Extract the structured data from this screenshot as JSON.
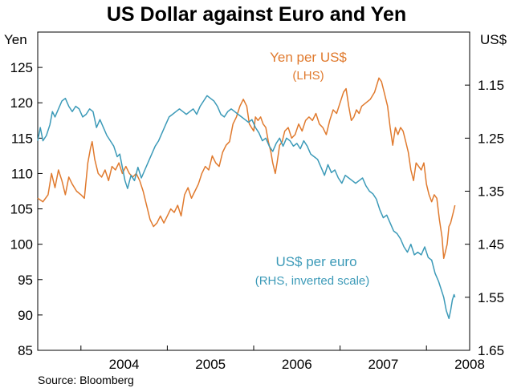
{
  "chart_data": {
    "type": "line",
    "title": "US Dollar against Euro and Yen",
    "source": "Source: Bloomberg",
    "x_ticks": [
      "2004",
      "2005",
      "2006",
      "2007",
      "2008"
    ],
    "y_left": {
      "unit": "Yen",
      "range": [
        85,
        130
      ],
      "ticks": [
        "85",
        "90",
        "95",
        "100",
        "105",
        "110",
        "115",
        "120",
        "125"
      ]
    },
    "y_right": {
      "unit": "US$",
      "range": [
        1.65,
        1.05
      ],
      "inverted": true,
      "ticks": [
        "1.15",
        "1.25",
        "1.35",
        "1.45",
        "1.55",
        "1.65"
      ]
    },
    "grid": false,
    "series": [
      {
        "name": "Yen per US$",
        "note": "(LHS)",
        "axis": "left",
        "color": "#E07A2E",
        "points": [
          [
            2003.5,
            106.5
          ],
          [
            2003.56,
            106.0
          ],
          [
            2003.62,
            107.0
          ],
          [
            2003.66,
            110.0
          ],
          [
            2003.7,
            108.0
          ],
          [
            2003.74,
            110.5
          ],
          [
            2003.78,
            109.0
          ],
          [
            2003.82,
            107.0
          ],
          [
            2003.86,
            109.5
          ],
          [
            2003.9,
            108.5
          ],
          [
            2003.95,
            107.5
          ],
          [
            2004.0,
            107.0
          ],
          [
            2004.04,
            106.5
          ],
          [
            2004.08,
            111.5
          ],
          [
            2004.11,
            113.5
          ],
          [
            2004.13,
            114.5
          ],
          [
            2004.16,
            112.0
          ],
          [
            2004.2,
            110.0
          ],
          [
            2004.24,
            109.5
          ],
          [
            2004.28,
            110.5
          ],
          [
            2004.32,
            109.0
          ],
          [
            2004.36,
            111.0
          ],
          [
            2004.4,
            110.5
          ],
          [
            2004.44,
            111.5
          ],
          [
            2004.48,
            110.0
          ],
          [
            2004.52,
            111.0
          ],
          [
            2004.56,
            110.0
          ],
          [
            2004.6,
            109.5
          ],
          [
            2004.64,
            110.0
          ],
          [
            2004.68,
            109.0
          ],
          [
            2004.72,
            107.5
          ],
          [
            2004.76,
            105.5
          ],
          [
            2004.8,
            103.5
          ],
          [
            2004.84,
            102.5
          ],
          [
            2004.88,
            103.0
          ],
          [
            2004.92,
            104.0
          ],
          [
            2004.96,
            103.0
          ],
          [
            2005.0,
            104.0
          ],
          [
            2005.04,
            105.0
          ],
          [
            2005.08,
            104.5
          ],
          [
            2005.12,
            105.5
          ],
          [
            2005.16,
            104.0
          ],
          [
            2005.2,
            107.0
          ],
          [
            2005.24,
            108.0
          ],
          [
            2005.28,
            106.5
          ],
          [
            2005.32,
            107.5
          ],
          [
            2005.36,
            108.5
          ],
          [
            2005.4,
            110.0
          ],
          [
            2005.44,
            111.0
          ],
          [
            2005.48,
            110.5
          ],
          [
            2005.52,
            112.5
          ],
          [
            2005.56,
            111.5
          ],
          [
            2005.6,
            111.0
          ],
          [
            2005.64,
            113.0
          ],
          [
            2005.68,
            114.0
          ],
          [
            2005.72,
            114.5
          ],
          [
            2005.76,
            117.0
          ],
          [
            2005.8,
            118.0
          ],
          [
            2005.84,
            119.5
          ],
          [
            2005.88,
            120.5
          ],
          [
            2005.92,
            119.5
          ],
          [
            2005.95,
            117.0
          ],
          [
            2006.0,
            116.0
          ],
          [
            2006.02,
            118.0
          ],
          [
            2006.05,
            117.5
          ],
          [
            2006.08,
            118.0
          ],
          [
            2006.11,
            117.0
          ],
          [
            2006.14,
            116.5
          ],
          [
            2006.17,
            114.5
          ],
          [
            2006.2,
            113.0
          ],
          [
            2006.22,
            111.5
          ],
          [
            2006.25,
            110.0
          ],
          [
            2006.27,
            111.5
          ],
          [
            2006.3,
            114.0
          ],
          [
            2006.33,
            114.5
          ],
          [
            2006.36,
            116.0
          ],
          [
            2006.4,
            116.5
          ],
          [
            2006.44,
            115.0
          ],
          [
            2006.48,
            115.5
          ],
          [
            2006.52,
            117.0
          ],
          [
            2006.56,
            116.0
          ],
          [
            2006.6,
            117.5
          ],
          [
            2006.64,
            118.0
          ],
          [
            2006.68,
            117.5
          ],
          [
            2006.72,
            118.5
          ],
          [
            2006.76,
            117.0
          ],
          [
            2006.8,
            116.5
          ],
          [
            2006.84,
            115.5
          ],
          [
            2006.88,
            117.5
          ],
          [
            2006.92,
            119.0
          ],
          [
            2006.96,
            118.5
          ],
          [
            2007.0,
            120.0
          ],
          [
            2007.04,
            121.5
          ],
          [
            2007.07,
            122.0
          ],
          [
            2007.1,
            119.5
          ],
          [
            2007.13,
            117.5
          ],
          [
            2007.16,
            118.0
          ],
          [
            2007.19,
            119.0
          ],
          [
            2007.22,
            118.5
          ],
          [
            2007.25,
            119.5
          ],
          [
            2007.3,
            120.0
          ],
          [
            2007.35,
            120.5
          ],
          [
            2007.4,
            121.5
          ],
          [
            2007.45,
            123.5
          ],
          [
            2007.48,
            123.0
          ],
          [
            2007.51,
            121.5
          ],
          [
            2007.55,
            119.5
          ],
          [
            2007.58,
            116.5
          ],
          [
            2007.61,
            114.0
          ],
          [
            2007.64,
            116.5
          ],
          [
            2007.67,
            115.5
          ],
          [
            2007.7,
            116.5
          ],
          [
            2007.73,
            116.0
          ],
          [
            2007.76,
            114.5
          ],
          [
            2007.79,
            113.0
          ],
          [
            2007.82,
            110.5
          ],
          [
            2007.85,
            109.0
          ],
          [
            2007.88,
            111.5
          ],
          [
            2007.91,
            111.0
          ],
          [
            2007.94,
            110.5
          ],
          [
            2007.97,
            111.5
          ],
          [
            2008.0,
            108.5
          ],
          [
            2008.03,
            107.0
          ],
          [
            2008.06,
            106.0
          ],
          [
            2008.09,
            107.0
          ],
          [
            2008.12,
            106.5
          ],
          [
            2008.15,
            103.5
          ],
          [
            2008.18,
            101.0
          ],
          [
            2008.2,
            98.0
          ],
          [
            2008.22,
            99.0
          ],
          [
            2008.24,
            100.0
          ],
          [
            2008.26,
            102.5
          ],
          [
            2008.28,
            103.0
          ],
          [
            2008.31,
            104.5
          ],
          [
            2008.33,
            105.5
          ]
        ]
      },
      {
        "name": "US$ per euro",
        "note": "(RHS, inverted scale)",
        "axis": "right",
        "color": "#3C9AB8",
        "points": [
          [
            2003.5,
            1.255
          ],
          [
            2003.53,
            1.23
          ],
          [
            2003.56,
            1.255
          ],
          [
            2003.6,
            1.245
          ],
          [
            2003.64,
            1.225
          ],
          [
            2003.67,
            1.2
          ],
          [
            2003.7,
            1.21
          ],
          [
            2003.74,
            1.195
          ],
          [
            2003.78,
            1.18
          ],
          [
            2003.82,
            1.175
          ],
          [
            2003.86,
            1.19
          ],
          [
            2003.9,
            1.2
          ],
          [
            2003.94,
            1.19
          ],
          [
            2003.98,
            1.195
          ],
          [
            2004.02,
            1.21
          ],
          [
            2004.06,
            1.205
          ],
          [
            2004.1,
            1.195
          ],
          [
            2004.14,
            1.2
          ],
          [
            2004.18,
            1.23
          ],
          [
            2004.22,
            1.215
          ],
          [
            2004.26,
            1.23
          ],
          [
            2004.3,
            1.245
          ],
          [
            2004.34,
            1.255
          ],
          [
            2004.38,
            1.265
          ],
          [
            2004.42,
            1.285
          ],
          [
            2004.45,
            1.28
          ],
          [
            2004.48,
            1.305
          ],
          [
            2004.51,
            1.33
          ],
          [
            2004.54,
            1.345
          ],
          [
            2004.58,
            1.32
          ],
          [
            2004.62,
            1.33
          ],
          [
            2004.66,
            1.305
          ],
          [
            2004.7,
            1.325
          ],
          [
            2004.74,
            1.31
          ],
          [
            2004.78,
            1.295
          ],
          [
            2004.82,
            1.28
          ],
          [
            2004.86,
            1.265
          ],
          [
            2004.9,
            1.255
          ],
          [
            2004.94,
            1.24
          ],
          [
            2004.98,
            1.225
          ],
          [
            2005.02,
            1.21
          ],
          [
            2005.06,
            1.205
          ],
          [
            2005.1,
            1.2
          ],
          [
            2005.14,
            1.195
          ],
          [
            2005.18,
            1.2
          ],
          [
            2005.22,
            1.205
          ],
          [
            2005.26,
            1.2
          ],
          [
            2005.3,
            1.195
          ],
          [
            2005.34,
            1.205
          ],
          [
            2005.38,
            1.19
          ],
          [
            2005.42,
            1.18
          ],
          [
            2005.46,
            1.17
          ],
          [
            2005.5,
            1.175
          ],
          [
            2005.54,
            1.18
          ],
          [
            2005.58,
            1.19
          ],
          [
            2005.62,
            1.205
          ],
          [
            2005.66,
            1.21
          ],
          [
            2005.7,
            1.2
          ],
          [
            2005.74,
            1.195
          ],
          [
            2005.78,
            1.2
          ],
          [
            2005.82,
            1.205
          ],
          [
            2005.86,
            1.21
          ],
          [
            2005.9,
            1.215
          ],
          [
            2005.94,
            1.22
          ],
          [
            2005.98,
            1.215
          ],
          [
            2006.02,
            1.23
          ],
          [
            2006.06,
            1.24
          ],
          [
            2006.1,
            1.255
          ],
          [
            2006.14,
            1.25
          ],
          [
            2006.18,
            1.265
          ],
          [
            2006.22,
            1.275
          ],
          [
            2006.26,
            1.26
          ],
          [
            2006.3,
            1.25
          ],
          [
            2006.34,
            1.265
          ],
          [
            2006.38,
            1.25
          ],
          [
            2006.42,
            1.255
          ],
          [
            2006.46,
            1.265
          ],
          [
            2006.5,
            1.26
          ],
          [
            2006.54,
            1.27
          ],
          [
            2006.58,
            1.255
          ],
          [
            2006.62,
            1.265
          ],
          [
            2006.66,
            1.28
          ],
          [
            2006.7,
            1.285
          ],
          [
            2006.74,
            1.29
          ],
          [
            2006.78,
            1.305
          ],
          [
            2006.82,
            1.32
          ],
          [
            2006.86,
            1.3
          ],
          [
            2006.9,
            1.315
          ],
          [
            2006.94,
            1.31
          ],
          [
            2006.98,
            1.325
          ],
          [
            2007.02,
            1.335
          ],
          [
            2007.06,
            1.32
          ],
          [
            2007.1,
            1.325
          ],
          [
            2007.14,
            1.33
          ],
          [
            2007.18,
            1.335
          ],
          [
            2007.22,
            1.33
          ],
          [
            2007.26,
            1.325
          ],
          [
            2007.3,
            1.34
          ],
          [
            2007.34,
            1.35
          ],
          [
            2007.38,
            1.355
          ],
          [
            2007.42,
            1.365
          ],
          [
            2007.46,
            1.385
          ],
          [
            2007.5,
            1.4
          ],
          [
            2007.54,
            1.395
          ],
          [
            2007.58,
            1.41
          ],
          [
            2007.62,
            1.425
          ],
          [
            2007.66,
            1.43
          ],
          [
            2007.7,
            1.44
          ],
          [
            2007.74,
            1.455
          ],
          [
            2007.78,
            1.465
          ],
          [
            2007.82,
            1.45
          ],
          [
            2007.86,
            1.47
          ],
          [
            2007.9,
            1.465
          ],
          [
            2007.94,
            1.47
          ],
          [
            2007.98,
            1.455
          ],
          [
            2008.02,
            1.475
          ],
          [
            2008.06,
            1.48
          ],
          [
            2008.1,
            1.505
          ],
          [
            2008.14,
            1.52
          ],
          [
            2008.17,
            1.535
          ],
          [
            2008.2,
            1.55
          ],
          [
            2008.23,
            1.575
          ],
          [
            2008.26,
            1.59
          ],
          [
            2008.28,
            1.575
          ],
          [
            2008.3,
            1.555
          ],
          [
            2008.32,
            1.545
          ],
          [
            2008.33,
            1.55
          ]
        ]
      }
    ]
  }
}
